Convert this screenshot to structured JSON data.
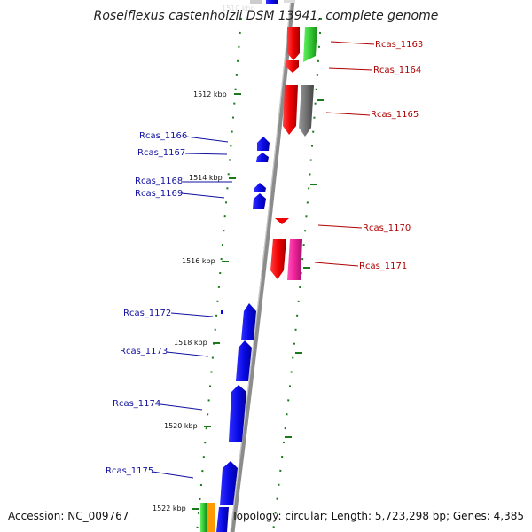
{
  "title": "Roseiflexus castenholzii DSM 13941, complete genome",
  "footer": {
    "accession": "Accession: NC_009767",
    "summary": "Topology: circular; Length: 5,723,298 bp; Genes: 4,385"
  },
  "ticks": [
    {
      "label": "1512 kbp"
    },
    {
      "label": "1514 kbp"
    },
    {
      "label": "1516 kbp"
    },
    {
      "label": "1518 kbp"
    },
    {
      "label": "1520 kbp"
    },
    {
      "label": "1522 kbp"
    }
  ],
  "genes_left": [
    {
      "name": "Rcas_1166"
    },
    {
      "name": "Rcas_1167"
    },
    {
      "name": "Rcas_1168"
    },
    {
      "name": "Rcas_1169"
    },
    {
      "name": "Rcas_1172"
    },
    {
      "name": "Rcas_1173"
    },
    {
      "name": "Rcas_1174"
    },
    {
      "name": "Rcas_1175"
    }
  ],
  "genes_right": [
    {
      "name": "Rcas_1163"
    },
    {
      "name": "Rcas_1164"
    },
    {
      "name": "Rcas_1165"
    },
    {
      "name": "Rcas_1170"
    },
    {
      "name": "Rcas_1171"
    }
  ],
  "colors": {
    "forward_strand": "#0a0ae6",
    "reverse_strand": "#f00000",
    "backbone": "#8c8c8c",
    "tick": "#1a7a1a",
    "gene_green": "#33cc33",
    "gene_grey": "#707070",
    "gene_pink": "#ee2299",
    "gene_orange": "#ff9900"
  }
}
